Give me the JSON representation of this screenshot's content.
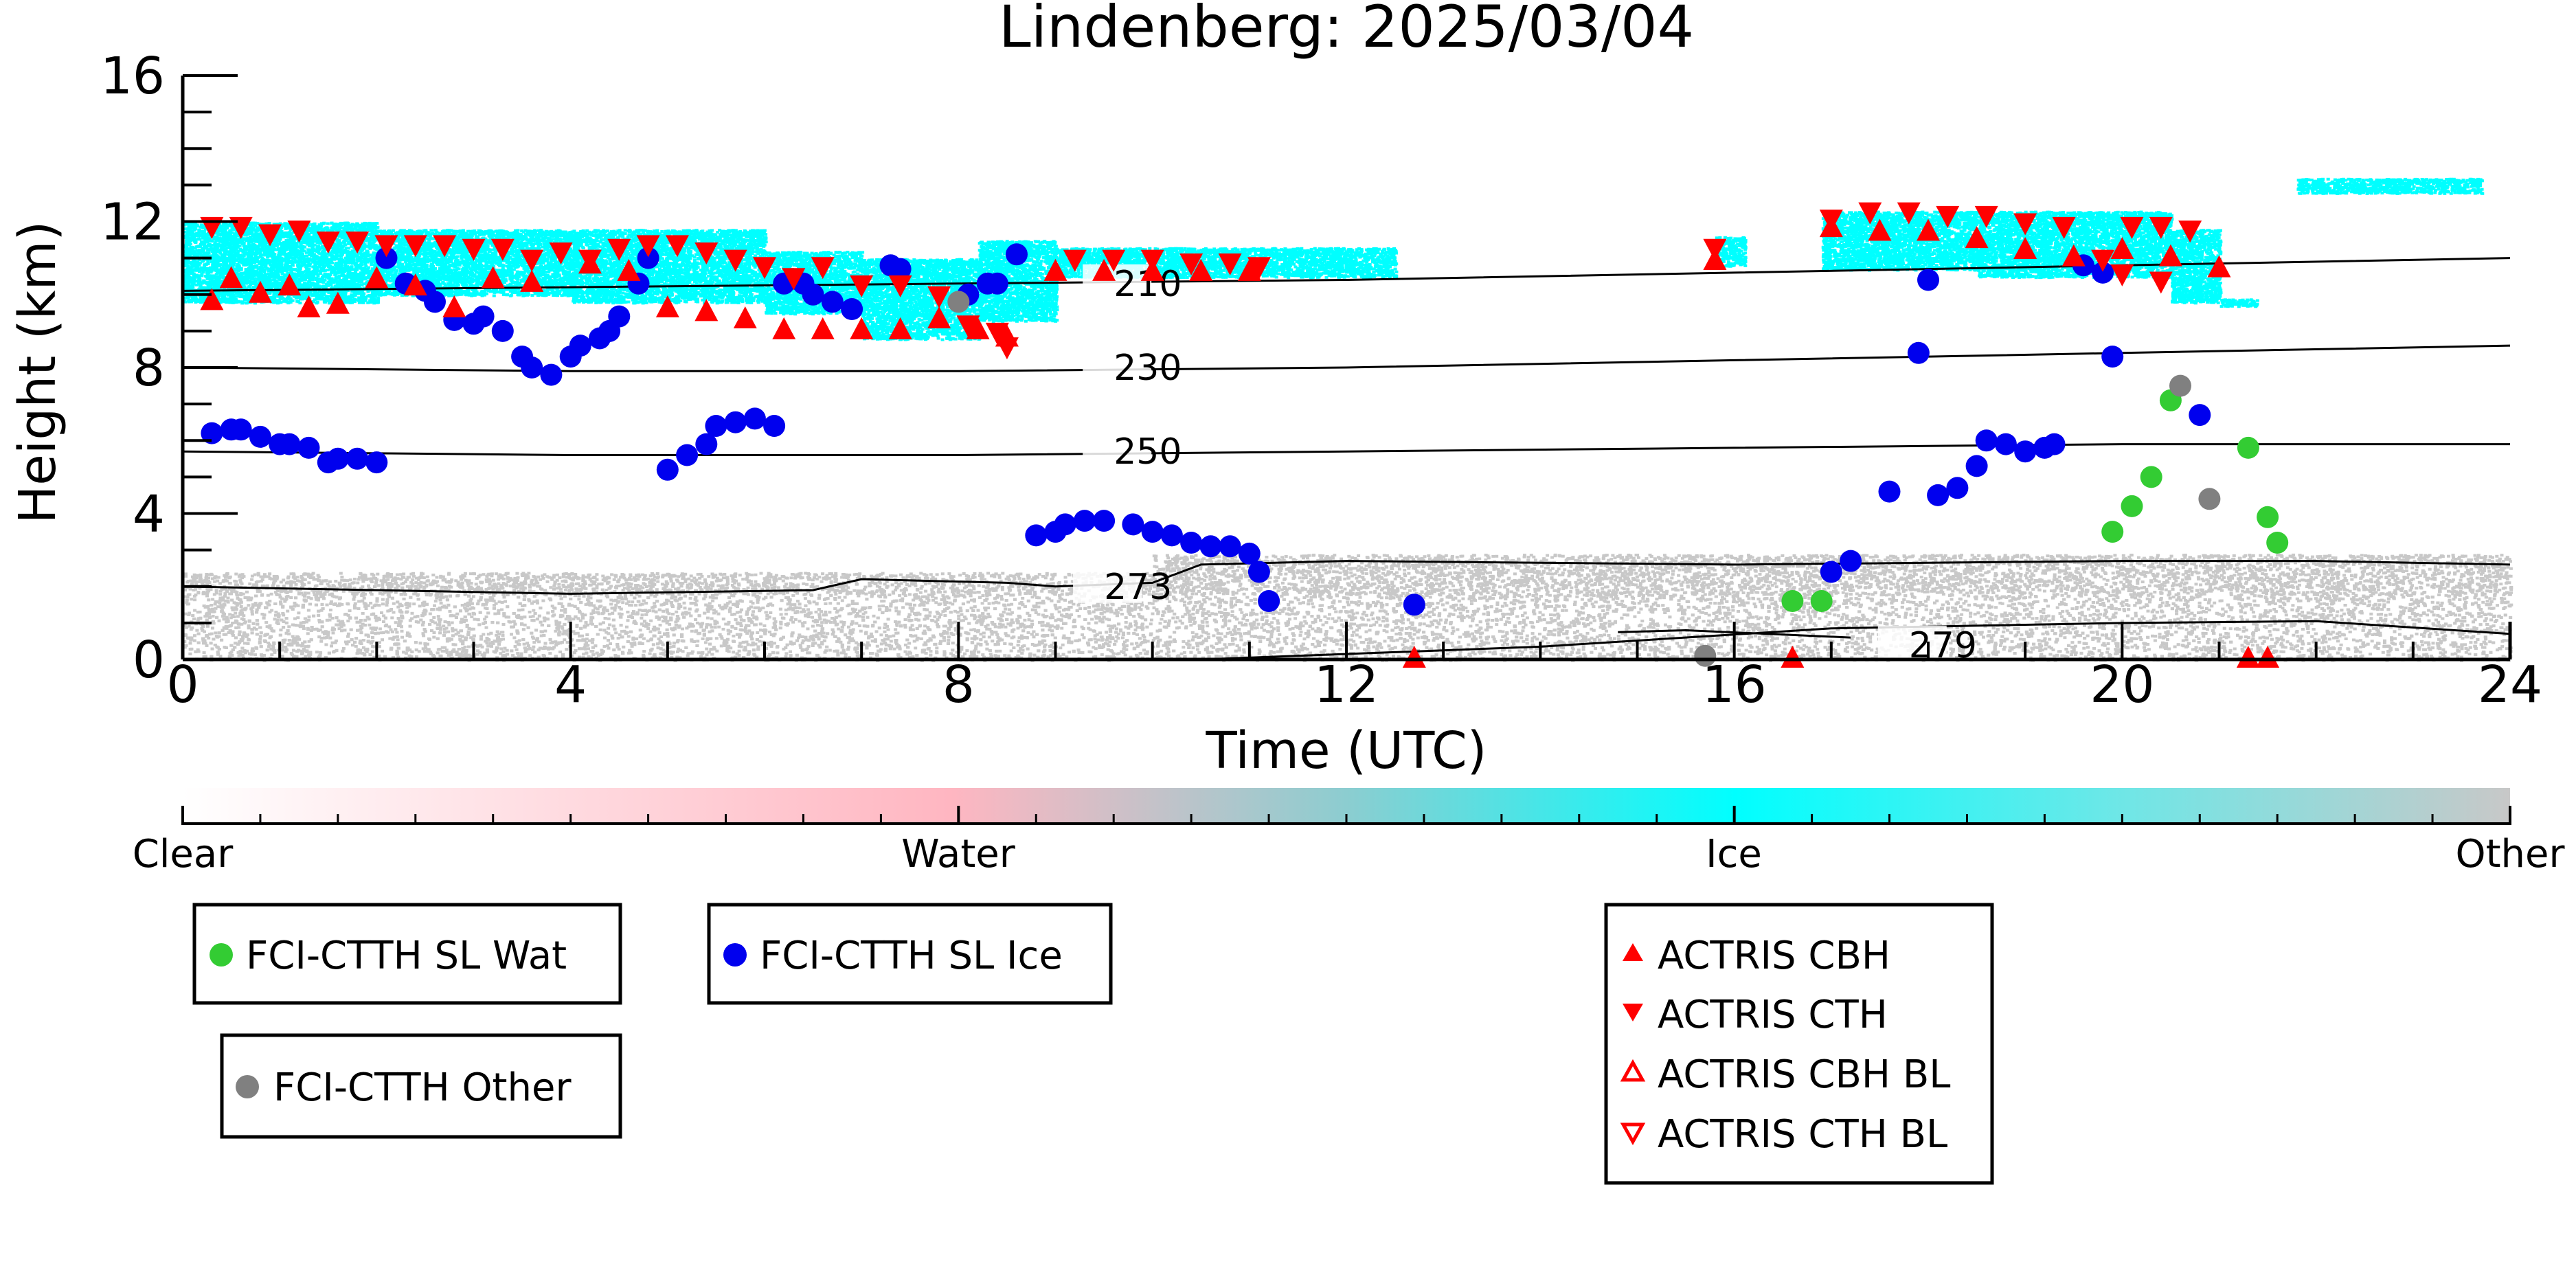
{
  "chart_data": {
    "type": "scatter",
    "title": "Lindenberg: 2025/03/04",
    "xlabel": "Time (UTC)",
    "ylabel": "Height (km)",
    "xlim": [
      0,
      24
    ],
    "ylim": [
      0,
      16
    ],
    "xticks": [
      "0",
      "4",
      "8",
      "12",
      "16",
      "20",
      "24"
    ],
    "yticks": [
      "0",
      "4",
      "8",
      "12",
      "16"
    ],
    "colors": {
      "wat": "#33cc33",
      "ice": "#0000ee",
      "other": "#808080",
      "actris": "#ff0000",
      "ice_mask": "#00ffff",
      "other_mask": "#c8c8c8",
      "water_mask": "#ffb6c1"
    },
    "colorbar": {
      "labels": [
        "Clear",
        "Water",
        "Ice",
        "Other"
      ]
    },
    "legend": {
      "wat": "FCI-CTTH SL Wat",
      "ice": "FCI-CTTH SL Ice",
      "other": "FCI-CTTH Other",
      "cbh": "ACTRIS CBH",
      "cth": "ACTRIS CTH",
      "cbh_bl": "ACTRIS CBH BL",
      "cth_bl": "ACTRIS CTH BL"
    },
    "isotherms": [
      {
        "label": "210",
        "label_at": [
          9.6,
          10.3
        ],
        "points": [
          [
            0,
            10.1
          ],
          [
            4,
            10.2
          ],
          [
            8,
            10.3
          ],
          [
            12,
            10.4
          ],
          [
            16,
            10.6
          ],
          [
            20,
            10.8
          ],
          [
            24,
            11.0
          ]
        ]
      },
      {
        "label": "230",
        "label_at": [
          9.6,
          8.0
        ],
        "points": [
          [
            0,
            8.0
          ],
          [
            4,
            7.9
          ],
          [
            8,
            7.9
          ],
          [
            12,
            8.0
          ],
          [
            16,
            8.2
          ],
          [
            20,
            8.4
          ],
          [
            24,
            8.6
          ]
        ]
      },
      {
        "label": "250",
        "label_at": [
          9.6,
          5.7
        ],
        "points": [
          [
            0,
            5.7
          ],
          [
            4,
            5.6
          ],
          [
            8,
            5.6
          ],
          [
            12,
            5.7
          ],
          [
            16,
            5.8
          ],
          [
            20,
            5.9
          ],
          [
            24,
            5.9
          ]
        ]
      },
      {
        "label": "273",
        "label_at": [
          9.5,
          2.0
        ],
        "points": [
          [
            0,
            2.0
          ],
          [
            4,
            1.8
          ],
          [
            6.5,
            1.9
          ],
          [
            7,
            2.2
          ],
          [
            8.5,
            2.1
          ],
          [
            9,
            2.0
          ],
          [
            10,
            2.1
          ],
          [
            10.5,
            2.6
          ],
          [
            12,
            2.7
          ],
          [
            16,
            2.6
          ],
          [
            20,
            2.7
          ],
          [
            22,
            2.7
          ],
          [
            24,
            2.6
          ]
        ]
      },
      {
        "label": "279",
        "label_at": [
          17.8,
          0.4
        ],
        "points": [
          [
            10.5,
            0.0
          ],
          [
            14,
            0.35
          ],
          [
            17,
            0.85
          ],
          [
            20,
            1.0
          ],
          [
            22,
            1.05
          ],
          [
            24,
            0.7
          ]
        ]
      },
      {
        "label": "",
        "label_at": null,
        "points": [
          [
            14.8,
            0.75
          ],
          [
            15.5,
            0.8
          ],
          [
            17.2,
            0.6
          ]
        ]
      }
    ],
    "masks": {
      "ice": [
        [
          0,
          2.0,
          9.8,
          12.0
        ],
        [
          2.0,
          4.0,
          10.0,
          11.8
        ],
        [
          4.0,
          6.0,
          9.8,
          11.8
        ],
        [
          6.0,
          7.0,
          9.5,
          11.2
        ],
        [
          7.0,
          8.2,
          8.8,
          11.0
        ],
        [
          8.2,
          9.0,
          9.3,
          11.5
        ],
        [
          9.0,
          12.5,
          10.5,
          11.3
        ],
        [
          15.8,
          16.1,
          10.8,
          11.6
        ],
        [
          16.9,
          18.5,
          10.7,
          12.3
        ],
        [
          18.5,
          20.5,
          10.5,
          12.3
        ],
        [
          20.5,
          21.0,
          9.8,
          11.8
        ],
        [
          21.0,
          21.4,
          9.7,
          9.9
        ],
        [
          21.8,
          23.7,
          12.8,
          13.2
        ]
      ],
      "other": [
        [
          0,
          24,
          0,
          1.8
        ],
        [
          0,
          10,
          1.8,
          2.4
        ],
        [
          10,
          24,
          1.8,
          2.9
        ]
      ]
    },
    "series": [
      {
        "name": "FCI-CTTH SL Wat",
        "kind": "wat",
        "points": [
          [
            16.6,
            1.6
          ],
          [
            16.9,
            1.6
          ],
          [
            19.9,
            3.5
          ],
          [
            20.1,
            4.2
          ],
          [
            20.3,
            5.0
          ],
          [
            20.5,
            7.1
          ],
          [
            21.3,
            5.8
          ],
          [
            21.5,
            3.9
          ],
          [
            21.6,
            3.2
          ]
        ]
      },
      {
        "name": "FCI-CTTH SL Ice",
        "kind": "ice",
        "points": [
          [
            0.3,
            6.2
          ],
          [
            0.5,
            6.3
          ],
          [
            0.6,
            6.3
          ],
          [
            0.8,
            6.1
          ],
          [
            1.0,
            5.9
          ],
          [
            1.1,
            5.9
          ],
          [
            1.3,
            5.8
          ],
          [
            1.5,
            5.4
          ],
          [
            1.6,
            5.5
          ],
          [
            1.8,
            5.5
          ],
          [
            2.0,
            5.4
          ],
          [
            2.1,
            11.0
          ],
          [
            2.3,
            10.3
          ],
          [
            2.5,
            10.1
          ],
          [
            2.6,
            9.8
          ],
          [
            2.8,
            9.3
          ],
          [
            3.0,
            9.2
          ],
          [
            3.1,
            9.4
          ],
          [
            3.3,
            9.0
          ],
          [
            3.5,
            8.3
          ],
          [
            3.6,
            8.0
          ],
          [
            3.8,
            7.8
          ],
          [
            4.0,
            8.3
          ],
          [
            4.1,
            8.6
          ],
          [
            4.3,
            8.8
          ],
          [
            4.4,
            9.0
          ],
          [
            4.5,
            9.4
          ],
          [
            4.7,
            10.3
          ],
          [
            4.8,
            11.0
          ],
          [
            5.0,
            5.2
          ],
          [
            5.2,
            5.6
          ],
          [
            5.4,
            5.9
          ],
          [
            5.5,
            6.4
          ],
          [
            5.7,
            6.5
          ],
          [
            5.9,
            6.6
          ],
          [
            6.1,
            6.4
          ],
          [
            6.2,
            10.3
          ],
          [
            6.4,
            10.3
          ],
          [
            6.5,
            10.0
          ],
          [
            6.7,
            9.8
          ],
          [
            6.9,
            9.6
          ],
          [
            7.3,
            10.8
          ],
          [
            7.4,
            10.7
          ],
          [
            8.1,
            10.0
          ],
          [
            8.3,
            10.3
          ],
          [
            8.4,
            10.3
          ],
          [
            8.6,
            11.1
          ],
          [
            8.8,
            3.4
          ],
          [
            9.0,
            3.5
          ],
          [
            9.1,
            3.7
          ],
          [
            9.3,
            3.8
          ],
          [
            9.5,
            3.8
          ],
          [
            9.8,
            3.7
          ],
          [
            10.0,
            3.5
          ],
          [
            10.2,
            3.4
          ],
          [
            10.4,
            3.2
          ],
          [
            10.6,
            3.1
          ],
          [
            10.8,
            3.1
          ],
          [
            11.0,
            2.9
          ],
          [
            11.1,
            2.4
          ],
          [
            11.2,
            1.6
          ],
          [
            12.7,
            1.5
          ],
          [
            17.0,
            2.4
          ],
          [
            17.2,
            2.7
          ],
          [
            17.6,
            4.6
          ],
          [
            17.9,
            8.4
          ],
          [
            18.0,
            10.4
          ],
          [
            18.1,
            4.5
          ],
          [
            18.3,
            4.7
          ],
          [
            18.5,
            5.3
          ],
          [
            18.6,
            6.0
          ],
          [
            18.8,
            5.9
          ],
          [
            19.0,
            5.7
          ],
          [
            19.2,
            5.8
          ],
          [
            19.3,
            5.9
          ],
          [
            19.6,
            10.8
          ],
          [
            19.8,
            10.6
          ],
          [
            19.9,
            8.3
          ],
          [
            20.8,
            6.7
          ]
        ]
      },
      {
        "name": "FCI-CTTH Other",
        "kind": "other",
        "points": [
          [
            8.0,
            9.8
          ],
          [
            15.7,
            0.1
          ],
          [
            20.6,
            7.5
          ],
          [
            20.9,
            4.4
          ]
        ]
      },
      {
        "name": "ACTRIS CBH",
        "kind": "cbh",
        "points": [
          [
            0.3,
            9.8
          ],
          [
            0.5,
            10.4
          ],
          [
            0.8,
            10.0
          ],
          [
            1.1,
            10.2
          ],
          [
            1.3,
            9.6
          ],
          [
            1.6,
            9.7
          ],
          [
            2.0,
            10.4
          ],
          [
            2.4,
            10.2
          ],
          [
            2.8,
            9.6
          ],
          [
            3.2,
            10.4
          ],
          [
            3.6,
            10.3
          ],
          [
            4.2,
            10.8
          ],
          [
            4.6,
            10.6
          ],
          [
            5.0,
            9.6
          ],
          [
            5.4,
            9.5
          ],
          [
            5.8,
            9.3
          ],
          [
            6.2,
            9.0
          ],
          [
            6.6,
            9.0
          ],
          [
            7.0,
            9.0
          ],
          [
            7.4,
            9.0
          ],
          [
            7.8,
            9.3
          ],
          [
            8.2,
            9.0
          ],
          [
            8.5,
            8.8
          ],
          [
            9.0,
            10.6
          ],
          [
            9.5,
            10.6
          ],
          [
            10.0,
            10.6
          ],
          [
            10.5,
            10.6
          ],
          [
            11.0,
            10.6
          ],
          [
            15.8,
            10.9
          ],
          [
            17.0,
            11.8
          ],
          [
            17.5,
            11.7
          ],
          [
            18.0,
            11.7
          ],
          [
            18.5,
            11.5
          ],
          [
            19.0,
            11.2
          ],
          [
            19.5,
            11.0
          ],
          [
            20.0,
            11.2
          ],
          [
            20.5,
            11.0
          ],
          [
            21.0,
            10.7
          ],
          [
            12.7,
            0.0
          ],
          [
            16.6,
            0.0
          ],
          [
            21.3,
            0.0
          ],
          [
            21.5,
            0.0
          ]
        ]
      },
      {
        "name": "ACTRIS CTH",
        "kind": "cth",
        "points": [
          [
            0.3,
            11.9
          ],
          [
            0.6,
            11.9
          ],
          [
            0.9,
            11.7
          ],
          [
            1.2,
            11.8
          ],
          [
            1.5,
            11.5
          ],
          [
            1.8,
            11.5
          ],
          [
            2.1,
            11.4
          ],
          [
            2.4,
            11.4
          ],
          [
            2.7,
            11.4
          ],
          [
            3.0,
            11.3
          ],
          [
            3.3,
            11.3
          ],
          [
            3.6,
            11.0
          ],
          [
            3.9,
            11.2
          ],
          [
            4.2,
            11.0
          ],
          [
            4.5,
            11.3
          ],
          [
            4.8,
            11.4
          ],
          [
            5.1,
            11.4
          ],
          [
            5.4,
            11.2
          ],
          [
            5.7,
            11.0
          ],
          [
            6.0,
            10.8
          ],
          [
            6.3,
            10.5
          ],
          [
            6.6,
            10.8
          ],
          [
            7.0,
            10.3
          ],
          [
            7.4,
            10.3
          ],
          [
            7.8,
            10.0
          ],
          [
            8.1,
            9.2
          ],
          [
            8.4,
            9.0
          ],
          [
            8.5,
            8.6
          ],
          [
            9.2,
            11.0
          ],
          [
            9.6,
            11.0
          ],
          [
            10.0,
            11.0
          ],
          [
            10.4,
            10.9
          ],
          [
            10.8,
            10.9
          ],
          [
            11.1,
            10.8
          ],
          [
            15.8,
            11.3
          ],
          [
            17.0,
            12.1
          ],
          [
            17.4,
            12.3
          ],
          [
            17.8,
            12.3
          ],
          [
            18.2,
            12.2
          ],
          [
            18.6,
            12.2
          ],
          [
            19.0,
            12.0
          ],
          [
            19.4,
            11.9
          ],
          [
            19.8,
            11.0
          ],
          [
            20.1,
            11.9
          ],
          [
            20.4,
            11.9
          ],
          [
            20.7,
            11.8
          ],
          [
            20.4,
            10.4
          ],
          [
            20.0,
            10.6
          ]
        ]
      },
      {
        "name": "ACTRIS CBH BL",
        "kind": "cbh_bl",
        "points": []
      },
      {
        "name": "ACTRIS CTH BL",
        "kind": "cth_bl",
        "points": []
      }
    ]
  }
}
